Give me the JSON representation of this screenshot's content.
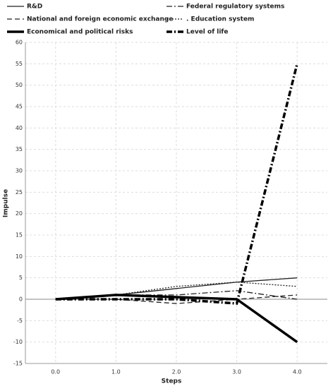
{
  "chart_data": {
    "type": "line",
    "xlabel": "Steps",
    "ylabel": "Impulse",
    "x": [
      0,
      1,
      2,
      3,
      4
    ],
    "xlim": [
      -0.5,
      4.5
    ],
    "xticks": [
      {
        "value": 0,
        "label": "0.0"
      },
      {
        "value": 1,
        "label": "1.0"
      },
      {
        "value": 2,
        "label": "2.0"
      },
      {
        "value": 3,
        "label": "3.0"
      },
      {
        "value": 4,
        "label": "4.0"
      }
    ],
    "ylim": [
      -15,
      60
    ],
    "yticks": [
      -15,
      -10,
      -5,
      0,
      5,
      10,
      15,
      20,
      25,
      30,
      35,
      40,
      45,
      50,
      55,
      60
    ],
    "grid": true,
    "series": [
      {
        "name": "R&D",
        "color": "#222222",
        "style": "solid",
        "weight": "thin",
        "values": [
          0,
          1,
          2.5,
          4,
          5
        ]
      },
      {
        "name": "Federal regulatory systems",
        "color": "#222222",
        "style": "dash-dot",
        "weight": "thin",
        "values": [
          0,
          1,
          1,
          2,
          0
        ]
      },
      {
        "name": "National and foreign economic exchange",
        "color": "#222222",
        "style": "dashed",
        "weight": "thin",
        "values": [
          0,
          0,
          -1,
          0,
          1
        ]
      },
      {
        "name": ". Education system",
        "color": "#222222",
        "style": "dotted",
        "weight": "thin",
        "values": [
          0,
          1,
          3,
          4,
          3
        ]
      },
      {
        "name": "Economical and political risks",
        "color": "#000000",
        "style": "solid",
        "weight": "thick",
        "values": [
          0,
          1,
          0.5,
          0,
          -10
        ]
      },
      {
        "name": "Level of life",
        "color": "#000000",
        "style": "dash-dot",
        "weight": "thick",
        "values": [
          0,
          0,
          0,
          -1,
          55
        ]
      }
    ]
  }
}
